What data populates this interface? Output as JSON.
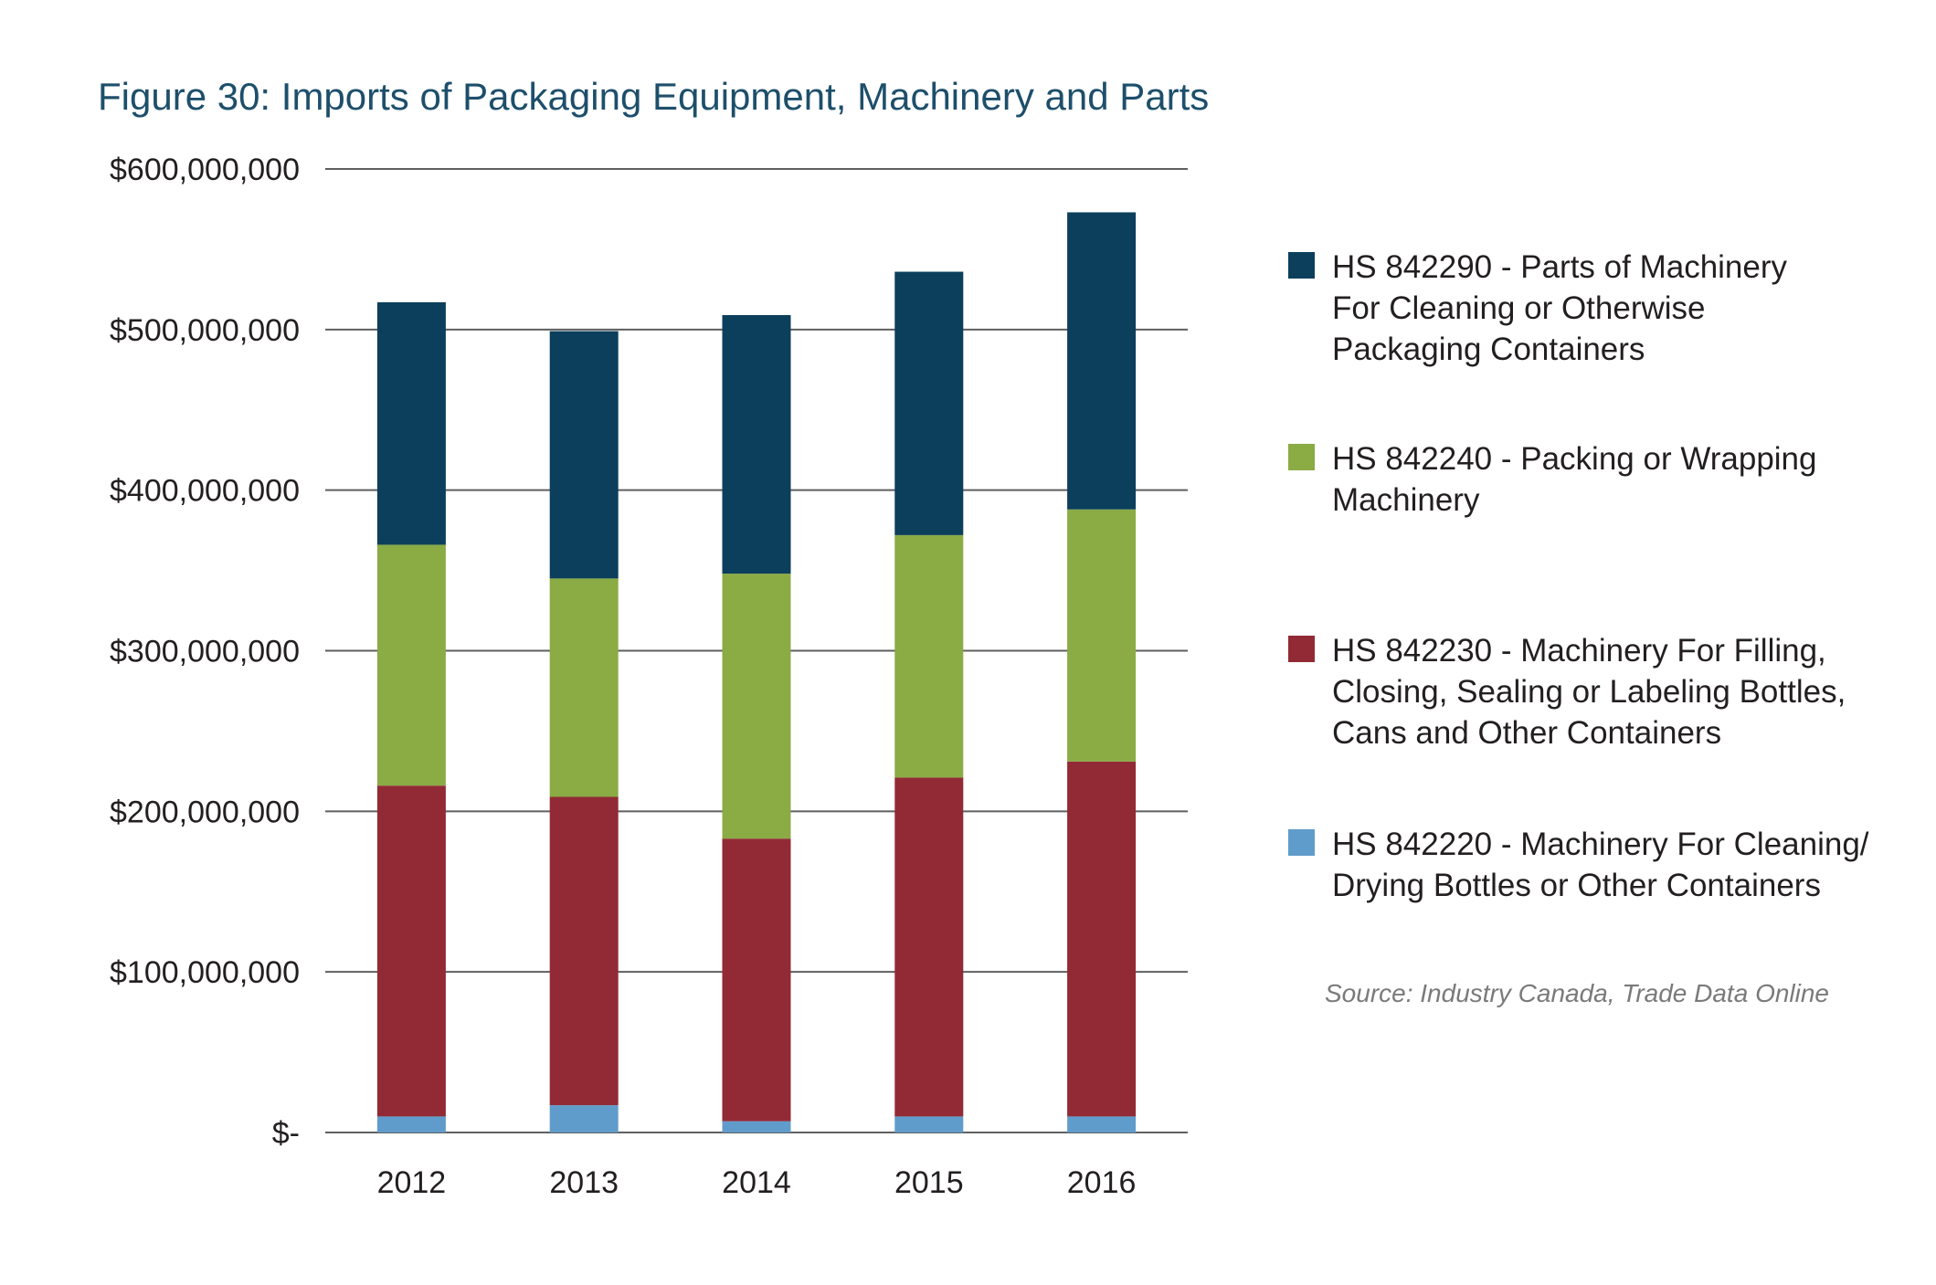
{
  "title": "Figure 30: Imports of Packaging Equipment, Machinery and Parts",
  "source": "Source: Industry Canada, Trade Data Online",
  "chart_data": {
    "type": "bar",
    "stacked": true,
    "title": "Figure 30: Imports of Packaging Equipment, Machinery and Parts",
    "xlabel": "",
    "ylabel": "",
    "categories": [
      "2012",
      "2013",
      "2014",
      "2015",
      "2016"
    ],
    "ylim": [
      0,
      600000000
    ],
    "yticks": [
      0,
      100000000,
      200000000,
      300000000,
      400000000,
      500000000,
      600000000
    ],
    "ytick_labels": [
      "$-",
      "$100,000,000",
      "$200,000,000",
      "$300,000,000",
      "$400,000,000",
      "$500,000,000",
      "$600,000,000"
    ],
    "grid": "horizontal",
    "legend_position": "right",
    "series": [
      {
        "name": "HS 842220 - Machinery For Cleaning/\nDrying Bottles or Other Containers",
        "color": "#609ccb",
        "values": [
          10000000,
          17000000,
          7000000,
          10000000,
          10000000
        ]
      },
      {
        "name": "HS 842230 - Machinery For Filling,\nClosing, Sealing or Labeling Bottles,\nCans and Other Containers",
        "color": "#922a35",
        "values": [
          206000000,
          192000000,
          176000000,
          211000000,
          221000000
        ]
      },
      {
        "name": "HS 842240 - Packing or Wrapping\nMachinery",
        "color": "#8bab45",
        "values": [
          150000000,
          136000000,
          165000000,
          151000000,
          157000000
        ]
      },
      {
        "name": "HS 842290 - Parts of Machinery\nFor Cleaning or Otherwise\nPackaging Containers",
        "color": "#0b3f5c",
        "values": [
          151000000,
          154000000,
          161000000,
          164000000,
          185000000
        ]
      }
    ]
  }
}
